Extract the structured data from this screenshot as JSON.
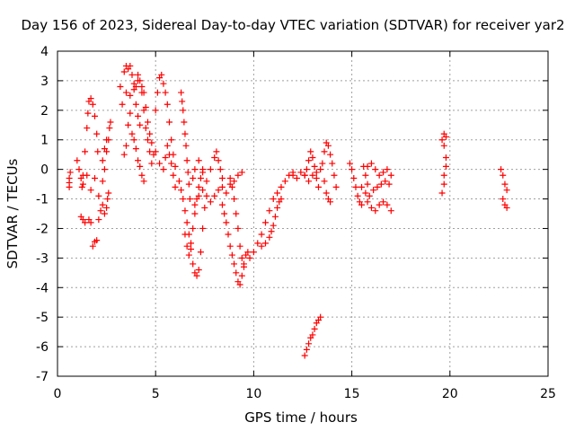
{
  "chart_data": {
    "type": "scatter",
    "title": "Day 156 of 2023, Sidereal Day-to-day VTEC variation (SDTVAR) for receiver yar2",
    "xlabel": "GPS time / hours",
    "ylabel": "SDTVAR / TECUs",
    "xlim": [
      0,
      25
    ],
    "ylim": [
      -7,
      4
    ],
    "xticks": [
      0,
      5,
      10,
      15,
      20,
      25
    ],
    "yticks": [
      -7,
      -6,
      -5,
      -4,
      -3,
      -2,
      -1,
      0,
      1,
      2,
      3,
      4
    ],
    "grid": true,
    "marker": "+",
    "color": "#ff0000",
    "series": [
      {
        "name": "SDTVAR",
        "points": [
          [
            0.6,
            -0.6
          ],
          [
            0.6,
            -0.3
          ],
          [
            0.65,
            -0.1
          ],
          [
            0.6,
            -0.45
          ],
          [
            1.0,
            0.3
          ],
          [
            1.1,
            0.0
          ],
          [
            1.2,
            -0.3
          ],
          [
            1.25,
            -0.6
          ],
          [
            1.3,
            -0.2
          ],
          [
            1.4,
            0.6
          ],
          [
            1.5,
            1.4
          ],
          [
            1.55,
            1.9
          ],
          [
            1.6,
            2.3
          ],
          [
            1.7,
            2.4
          ],
          [
            1.8,
            2.2
          ],
          [
            1.9,
            1.8
          ],
          [
            2.0,
            1.2
          ],
          [
            2.05,
            0.6
          ],
          [
            1.2,
            -1.6
          ],
          [
            1.3,
            -1.7
          ],
          [
            1.4,
            -1.8
          ],
          [
            1.6,
            -1.7
          ],
          [
            1.7,
            -1.8
          ],
          [
            1.8,
            -2.6
          ],
          [
            1.9,
            -2.45
          ],
          [
            2.0,
            -2.4
          ],
          [
            2.1,
            -1.7
          ],
          [
            2.2,
            -1.4
          ],
          [
            2.3,
            -1.2
          ],
          [
            2.4,
            -1.5
          ],
          [
            2.5,
            -1.3
          ],
          [
            2.55,
            -1.0
          ],
          [
            2.6,
            -0.8
          ],
          [
            1.3,
            -0.5
          ],
          [
            1.5,
            -0.2
          ],
          [
            1.7,
            -0.7
          ],
          [
            1.9,
            -0.3
          ],
          [
            2.1,
            -0.9
          ],
          [
            2.3,
            -0.4
          ],
          [
            2.4,
            0.0
          ],
          [
            2.5,
            0.6
          ],
          [
            2.6,
            1.0
          ],
          [
            2.65,
            1.4
          ],
          [
            2.7,
            1.6
          ],
          [
            2.3,
            0.3
          ],
          [
            2.4,
            0.7
          ],
          [
            2.5,
            1.0
          ],
          [
            3.2,
            2.8
          ],
          [
            3.4,
            3.3
          ],
          [
            3.5,
            3.5
          ],
          [
            3.6,
            3.4
          ],
          [
            3.7,
            3.5
          ],
          [
            3.8,
            3.2
          ],
          [
            3.9,
            2.7
          ],
          [
            4.0,
            2.2
          ],
          [
            4.1,
            1.8
          ],
          [
            4.2,
            1.5
          ],
          [
            3.3,
            2.2
          ],
          [
            3.5,
            2.6
          ],
          [
            3.7,
            2.5
          ],
          [
            3.9,
            2.9
          ],
          [
            4.1,
            3.0
          ],
          [
            4.3,
            2.6
          ],
          [
            4.4,
            2.0
          ],
          [
            4.5,
            1.4
          ],
          [
            4.6,
            1.0
          ],
          [
            4.7,
            0.6
          ],
          [
            4.8,
            0.2
          ],
          [
            3.4,
            0.5
          ],
          [
            3.5,
            0.8
          ],
          [
            3.6,
            1.5
          ],
          [
            3.7,
            1.9
          ],
          [
            3.8,
            1.2
          ],
          [
            3.9,
            1.0
          ],
          [
            4.0,
            0.7
          ],
          [
            4.1,
            0.3
          ],
          [
            4.2,
            0.1
          ],
          [
            4.3,
            -0.2
          ],
          [
            4.4,
            -0.4
          ],
          [
            4.0,
            2.8
          ],
          [
            4.1,
            3.2
          ],
          [
            4.2,
            3.0
          ],
          [
            4.3,
            2.8
          ],
          [
            4.4,
            2.6
          ],
          [
            4.5,
            2.1
          ],
          [
            4.6,
            1.6
          ],
          [
            4.7,
            1.2
          ],
          [
            4.8,
            0.9
          ],
          [
            4.9,
            0.5
          ],
          [
            5.0,
            2.0
          ],
          [
            5.1,
            2.6
          ],
          [
            5.2,
            3.1
          ],
          [
            5.3,
            3.2
          ],
          [
            5.4,
            2.9
          ],
          [
            5.5,
            2.6
          ],
          [
            5.6,
            2.2
          ],
          [
            5.7,
            1.6
          ],
          [
            5.8,
            1.0
          ],
          [
            5.9,
            0.5
          ],
          [
            6.0,
            0.1
          ],
          [
            5.0,
            0.6
          ],
          [
            5.2,
            0.2
          ],
          [
            5.4,
            0.0
          ],
          [
            5.5,
            0.4
          ],
          [
            5.6,
            0.8
          ],
          [
            5.7,
            0.5
          ],
          [
            5.8,
            0.2
          ],
          [
            5.9,
            -0.2
          ],
          [
            6.0,
            -0.6
          ],
          [
            6.3,
            2.6
          ],
          [
            6.35,
            2.3
          ],
          [
            6.4,
            2.0
          ],
          [
            6.45,
            1.6
          ],
          [
            6.5,
            1.2
          ],
          [
            6.55,
            0.8
          ],
          [
            6.6,
            0.3
          ],
          [
            6.65,
            -0.1
          ],
          [
            6.7,
            -0.5
          ],
          [
            6.75,
            -1.0
          ],
          [
            6.2,
            -0.4
          ],
          [
            6.3,
            -0.7
          ],
          [
            6.4,
            -1.0
          ],
          [
            6.5,
            -1.4
          ],
          [
            6.6,
            -1.8
          ],
          [
            6.7,
            -2.2
          ],
          [
            6.8,
            -2.7
          ],
          [
            6.9,
            -3.2
          ],
          [
            7.0,
            -3.5
          ],
          [
            7.1,
            -3.6
          ],
          [
            7.2,
            -3.4
          ],
          [
            7.3,
            -2.8
          ],
          [
            7.4,
            -2.0
          ],
          [
            7.5,
            -1.3
          ],
          [
            6.5,
            -2.2
          ],
          [
            6.6,
            -2.6
          ],
          [
            6.7,
            -2.9
          ],
          [
            6.8,
            -2.5
          ],
          [
            6.9,
            -2.0
          ],
          [
            7.0,
            -1.5
          ],
          [
            7.1,
            -1.0
          ],
          [
            7.2,
            -0.6
          ],
          [
            7.3,
            -0.3
          ],
          [
            7.4,
            0.0
          ],
          [
            6.9,
            -0.3
          ],
          [
            7.0,
            0.0
          ],
          [
            7.2,
            0.3
          ],
          [
            7.4,
            -0.1
          ],
          [
            7.6,
            -0.4
          ],
          [
            7.8,
            0.0
          ],
          [
            8.0,
            0.4
          ],
          [
            8.1,
            0.6
          ],
          [
            8.2,
            0.3
          ],
          [
            8.3,
            0.0
          ],
          [
            8.4,
            -0.3
          ],
          [
            7.0,
            -1.2
          ],
          [
            7.2,
            -0.9
          ],
          [
            7.4,
            -0.7
          ],
          [
            7.6,
            -0.9
          ],
          [
            7.8,
            -1.1
          ],
          [
            8.0,
            -0.9
          ],
          [
            8.2,
            -0.7
          ],
          [
            8.4,
            -0.6
          ],
          [
            8.6,
            -0.8
          ],
          [
            8.8,
            -0.5
          ],
          [
            9.0,
            -0.4
          ],
          [
            9.2,
            -0.2
          ],
          [
            9.4,
            -0.1
          ],
          [
            8.4,
            -1.2
          ],
          [
            8.5,
            -1.5
          ],
          [
            8.6,
            -1.8
          ],
          [
            8.7,
            -2.2
          ],
          [
            8.8,
            -2.6
          ],
          [
            8.9,
            -2.9
          ],
          [
            9.0,
            -3.2
          ],
          [
            9.1,
            -3.5
          ],
          [
            9.2,
            -3.8
          ],
          [
            9.3,
            -3.9
          ],
          [
            9.4,
            -3.6
          ],
          [
            9.5,
            -3.2
          ],
          [
            9.6,
            -2.9
          ],
          [
            9.7,
            -2.8
          ],
          [
            8.8,
            -0.3
          ],
          [
            8.9,
            -0.6
          ],
          [
            9.0,
            -1.0
          ],
          [
            9.1,
            -1.5
          ],
          [
            9.2,
            -2.0
          ],
          [
            9.3,
            -2.6
          ],
          [
            9.4,
            -3.0
          ],
          [
            9.5,
            -3.3
          ],
          [
            9.8,
            -3.0
          ],
          [
            10.0,
            -2.8
          ],
          [
            10.2,
            -2.5
          ],
          [
            10.4,
            -2.2
          ],
          [
            10.6,
            -1.8
          ],
          [
            10.8,
            -1.4
          ],
          [
            11.0,
            -1.0
          ],
          [
            11.2,
            -0.8
          ],
          [
            11.4,
            -0.6
          ],
          [
            11.6,
            -0.4
          ],
          [
            11.8,
            -0.2
          ],
          [
            12.0,
            -0.1
          ],
          [
            10.4,
            -2.6
          ],
          [
            10.6,
            -2.5
          ],
          [
            10.8,
            -2.3
          ],
          [
            10.9,
            -2.1
          ],
          [
            11.0,
            -1.9
          ],
          [
            11.1,
            -1.6
          ],
          [
            11.2,
            -1.3
          ],
          [
            11.3,
            -1.1
          ],
          [
            11.4,
            -1.0
          ],
          [
            12.0,
            -0.2
          ],
          [
            12.2,
            -0.3
          ],
          [
            12.4,
            -0.1
          ],
          [
            12.6,
            -0.2
          ],
          [
            12.8,
            -0.4
          ],
          [
            13.0,
            -0.2
          ],
          [
            13.2,
            -0.1
          ],
          [
            13.4,
            0.0
          ],
          [
            12.6,
            -0.2
          ],
          [
            12.7,
            0.0
          ],
          [
            12.8,
            0.3
          ],
          [
            12.9,
            0.6
          ],
          [
            13.0,
            0.4
          ],
          [
            13.1,
            0.1
          ],
          [
            13.2,
            -0.3
          ],
          [
            13.3,
            -0.6
          ],
          [
            12.6,
            -6.3
          ],
          [
            12.7,
            -6.1
          ],
          [
            12.8,
            -5.9
          ],
          [
            12.9,
            -5.7
          ],
          [
            13.0,
            -5.6
          ],
          [
            13.1,
            -5.4
          ],
          [
            13.2,
            -5.2
          ],
          [
            13.3,
            -5.1
          ],
          [
            13.4,
            -5.0
          ],
          [
            13.5,
            0.2
          ],
          [
            13.6,
            0.6
          ],
          [
            13.7,
            0.9
          ],
          [
            13.8,
            0.8
          ],
          [
            13.9,
            0.5
          ],
          [
            14.0,
            0.2
          ],
          [
            14.1,
            -0.2
          ],
          [
            14.2,
            -0.6
          ],
          [
            13.6,
            -0.4
          ],
          [
            13.7,
            -0.8
          ],
          [
            13.8,
            -1.0
          ],
          [
            13.9,
            -1.1
          ],
          [
            14.9,
            0.2
          ],
          [
            15.0,
            0.0
          ],
          [
            15.1,
            -0.3
          ],
          [
            15.2,
            -0.6
          ],
          [
            15.3,
            -0.9
          ],
          [
            15.4,
            -1.1
          ],
          [
            15.5,
            -1.2
          ],
          [
            15.6,
            0.1
          ],
          [
            15.7,
            -0.2
          ],
          [
            15.8,
            -0.5
          ],
          [
            15.5,
            -0.6
          ],
          [
            15.7,
            -0.8
          ],
          [
            15.9,
            -0.9
          ],
          [
            16.1,
            -0.7
          ],
          [
            16.3,
            -0.6
          ],
          [
            16.5,
            -0.5
          ],
          [
            16.7,
            -0.4
          ],
          [
            16.9,
            -0.5
          ],
          [
            15.8,
            0.1
          ],
          [
            16.0,
            0.2
          ],
          [
            16.2,
            0.0
          ],
          [
            16.4,
            -0.2
          ],
          [
            16.6,
            -0.1
          ],
          [
            16.8,
            0.0
          ],
          [
            17.0,
            -0.2
          ],
          [
            15.8,
            -1.1
          ],
          [
            16.0,
            -1.3
          ],
          [
            16.2,
            -1.4
          ],
          [
            16.4,
            -1.2
          ],
          [
            16.6,
            -1.1
          ],
          [
            16.8,
            -1.2
          ],
          [
            17.0,
            -1.4
          ],
          [
            19.6,
            1.0
          ],
          [
            19.7,
            1.2
          ],
          [
            19.8,
            1.1
          ],
          [
            19.7,
            0.8
          ],
          [
            19.8,
            0.4
          ],
          [
            19.8,
            0.1
          ],
          [
            19.7,
            -0.2
          ],
          [
            19.7,
            -0.5
          ],
          [
            19.6,
            -0.8
          ],
          [
            22.6,
            0.0
          ],
          [
            22.7,
            -0.2
          ],
          [
            22.8,
            -0.5
          ],
          [
            22.9,
            -0.7
          ],
          [
            22.7,
            -1.0
          ],
          [
            22.8,
            -1.2
          ],
          [
            22.9,
            -1.3
          ]
        ]
      }
    ]
  }
}
